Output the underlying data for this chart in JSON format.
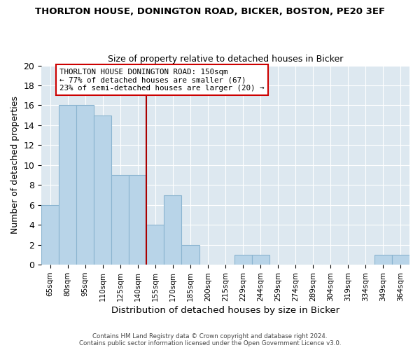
{
  "title": "THORLTON HOUSE, DONINGTON ROAD, BICKER, BOSTON, PE20 3EF",
  "subtitle": "Size of property relative to detached houses in Bicker",
  "xlabel": "Distribution of detached houses by size in Bicker",
  "ylabel": "Number of detached properties",
  "bins": [
    "65sqm",
    "80sqm",
    "95sqm",
    "110sqm",
    "125sqm",
    "140sqm",
    "155sqm",
    "170sqm",
    "185sqm",
    "200sqm",
    "215sqm",
    "229sqm",
    "244sqm",
    "259sqm",
    "274sqm",
    "289sqm",
    "304sqm",
    "319sqm",
    "334sqm",
    "349sqm",
    "364sqm"
  ],
  "counts": [
    6,
    16,
    16,
    15,
    9,
    9,
    4,
    7,
    2,
    0,
    0,
    1,
    1,
    0,
    0,
    0,
    0,
    0,
    0,
    1,
    1
  ],
  "bar_color": "#b8d4e8",
  "bar_edge_color": "#8ab4d0",
  "vline_x": 5.5,
  "vline_color": "#aa0000",
  "annotation_text": "THORLTON HOUSE DONINGTON ROAD: 150sqm\n← 77% of detached houses are smaller (67)\n23% of semi-detached houses are larger (20) →",
  "annotation_box_color": "#ffffff",
  "annotation_box_edge_color": "#cc0000",
  "ylim": [
    0,
    20
  ],
  "yticks": [
    0,
    2,
    4,
    6,
    8,
    10,
    12,
    14,
    16,
    18,
    20
  ],
  "bg_color": "#dde8f0",
  "grid_color": "#ffffff",
  "footer_line1": "Contains HM Land Registry data © Crown copyright and database right 2024.",
  "footer_line2": "Contains public sector information licensed under the Open Government Licence v3.0."
}
